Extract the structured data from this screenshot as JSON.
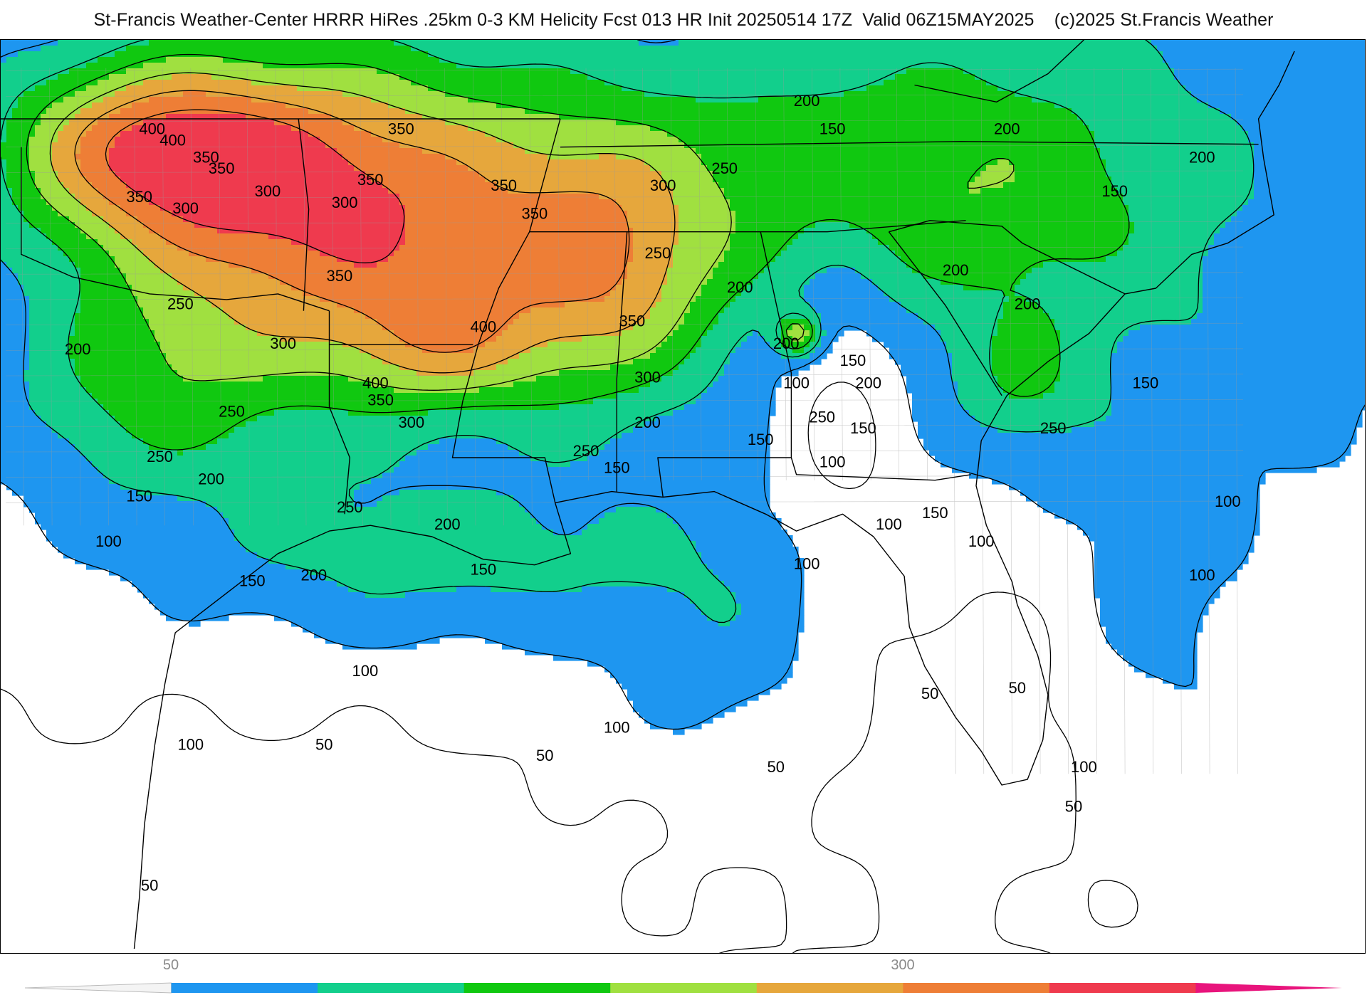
{
  "header": {
    "title": "St-Francis Weather-Center HRRR HiRes .25km 0-3 KM Helicity Fcst 013 HR Init 20250514 17Z  Valid 06Z15MAY2025    (c)2025 St.Francis Weather"
  },
  "colors": {
    "background": "#ffffff",
    "border": "#000000",
    "state_lines": "#000000",
    "county_lines": "#9a9a9a",
    "contour": "#000000"
  },
  "legend": {
    "tick_labels": [
      "50",
      "300"
    ],
    "bins": [
      {
        "color": "#f4f4f4"
      },
      {
        "color": "#1e96f0"
      },
      {
        "color": "#12cf8c"
      },
      {
        "color": "#10c810"
      },
      {
        "color": "#a0e040"
      },
      {
        "color": "#e6a73c"
      },
      {
        "color": "#ee7e36"
      },
      {
        "color": "#ef3a4e"
      },
      {
        "color": "#e8147c"
      }
    ]
  },
  "fill_levels": [
    {
      "min": 100,
      "color": "#1e96f0"
    },
    {
      "min": 150,
      "color": "#12cf8c"
    },
    {
      "min": 200,
      "color": "#10c810"
    },
    {
      "min": 250,
      "color": "#a0e040"
    },
    {
      "min": 300,
      "color": "#e6a73c"
    },
    {
      "min": 350,
      "color": "#ee7e36"
    },
    {
      "min": 400,
      "color": "#ef3a4e"
    }
  ],
  "contour_labels": [
    {
      "text": "400",
      "lon": -97.45,
      "lat": 36.8
    },
    {
      "text": "400",
      "lon": -97.05,
      "lat": 36.6
    },
    {
      "text": "350",
      "lon": -96.4,
      "lat": 36.3
    },
    {
      "text": "350",
      "lon": -96.1,
      "lat": 36.1
    },
    {
      "text": "350",
      "lon": -97.7,
      "lat": 35.6
    },
    {
      "text": "300",
      "lon": -96.8,
      "lat": 35.4
    },
    {
      "text": "300",
      "lon": -95.2,
      "lat": 35.7
    },
    {
      "text": "350",
      "lon": -92.6,
      "lat": 36.8
    },
    {
      "text": "350",
      "lon": -93.2,
      "lat": 35.9
    },
    {
      "text": "300",
      "lon": -93.7,
      "lat": 35.5
    },
    {
      "text": "350",
      "lon": -90.6,
      "lat": 35.8
    },
    {
      "text": "350",
      "lon": -90.0,
      "lat": 35.3
    },
    {
      "text": "300",
      "lon": -87.5,
      "lat": 35.8
    },
    {
      "text": "350",
      "lon": -93.8,
      "lat": 34.2
    },
    {
      "text": "250",
      "lon": -96.9,
      "lat": 33.7
    },
    {
      "text": "200",
      "lon": -98.9,
      "lat": 32.9
    },
    {
      "text": "300",
      "lon": -94.9,
      "lat": 33.0
    },
    {
      "text": "400",
      "lon": -91.0,
      "lat": 33.3
    },
    {
      "text": "400",
      "lon": -93.1,
      "lat": 32.3
    },
    {
      "text": "350",
      "lon": -93.0,
      "lat": 32.0
    },
    {
      "text": "300",
      "lon": -92.4,
      "lat": 31.6
    },
    {
      "text": "250",
      "lon": -87.6,
      "lat": 34.6
    },
    {
      "text": "200",
      "lon": -86.0,
      "lat": 34.0
    },
    {
      "text": "350",
      "lon": -88.1,
      "lat": 33.4
    },
    {
      "text": "300",
      "lon": -87.8,
      "lat": 32.4
    },
    {
      "text": "200",
      "lon": -87.8,
      "lat": 31.6
    },
    {
      "text": "250",
      "lon": -89.0,
      "lat": 31.1
    },
    {
      "text": "150",
      "lon": -88.4,
      "lat": 30.8
    },
    {
      "text": "250",
      "lon": -95.9,
      "lat": 31.8
    },
    {
      "text": "250",
      "lon": -97.3,
      "lat": 31.0
    },
    {
      "text": "200",
      "lon": -96.3,
      "lat": 30.6
    },
    {
      "text": "150",
      "lon": -97.7,
      "lat": 30.3
    },
    {
      "text": "100",
      "lon": -98.3,
      "lat": 29.5
    },
    {
      "text": "250",
      "lon": -93.6,
      "lat": 30.1
    },
    {
      "text": "200",
      "lon": -91.7,
      "lat": 29.8
    },
    {
      "text": "150",
      "lon": -91.0,
      "lat": 29.0
    },
    {
      "text": "200",
      "lon": -94.3,
      "lat": 28.9
    },
    {
      "text": "150",
      "lon": -95.5,
      "lat": 28.8
    },
    {
      "text": "100",
      "lon": -93.3,
      "lat": 27.2
    },
    {
      "text": "100",
      "lon": -96.7,
      "lat": 25.9
    },
    {
      "text": "50",
      "lon": -94.1,
      "lat": 25.9
    },
    {
      "text": "50",
      "lon": -89.8,
      "lat": 25.7
    },
    {
      "text": "100",
      "lon": -88.4,
      "lat": 26.2
    },
    {
      "text": "50",
      "lon": -85.3,
      "lat": 25.5
    },
    {
      "text": "50",
      "lon": -97.5,
      "lat": 23.4
    },
    {
      "text": "200",
      "lon": -84.7,
      "lat": 37.3
    },
    {
      "text": "150",
      "lon": -84.2,
      "lat": 36.8
    },
    {
      "text": "250",
      "lon": -86.3,
      "lat": 36.1
    },
    {
      "text": "200",
      "lon": -80.8,
      "lat": 36.8
    },
    {
      "text": "200",
      "lon": -77.0,
      "lat": 36.3
    },
    {
      "text": "150",
      "lon": -78.7,
      "lat": 35.7
    },
    {
      "text": "200",
      "lon": -81.8,
      "lat": 34.3
    },
    {
      "text": "200",
      "lon": -80.4,
      "lat": 33.7
    },
    {
      "text": "150",
      "lon": -83.8,
      "lat": 32.7
    },
    {
      "text": "100",
      "lon": -84.9,
      "lat": 32.3
    },
    {
      "text": "200",
      "lon": -83.5,
      "lat": 32.3
    },
    {
      "text": "200",
      "lon": -85.1,
      "lat": 33.0
    },
    {
      "text": "250",
      "lon": -84.4,
      "lat": 31.7
    },
    {
      "text": "150",
      "lon": -83.6,
      "lat": 31.5
    },
    {
      "text": "150",
      "lon": -85.6,
      "lat": 31.3
    },
    {
      "text": "100",
      "lon": -84.2,
      "lat": 30.9
    },
    {
      "text": "150",
      "lon": -82.2,
      "lat": 30.0
    },
    {
      "text": "100",
      "lon": -83.1,
      "lat": 29.8
    },
    {
      "text": "100",
      "lon": -81.3,
      "lat": 29.5
    },
    {
      "text": "100",
      "lon": -84.7,
      "lat": 29.1
    },
    {
      "text": "150",
      "lon": -78.1,
      "lat": 32.3
    },
    {
      "text": "250",
      "lon": -79.9,
      "lat": 31.5
    },
    {
      "text": "100",
      "lon": -76.5,
      "lat": 30.2
    },
    {
      "text": "100",
      "lon": -77.0,
      "lat": 28.9
    },
    {
      "text": "50",
      "lon": -82.3,
      "lat": 26.8
    },
    {
      "text": "50",
      "lon": -80.6,
      "lat": 26.9
    },
    {
      "text": "100",
      "lon": -79.3,
      "lat": 25.5
    },
    {
      "text": "50",
      "lon": -79.5,
      "lat": 24.8
    }
  ]
}
